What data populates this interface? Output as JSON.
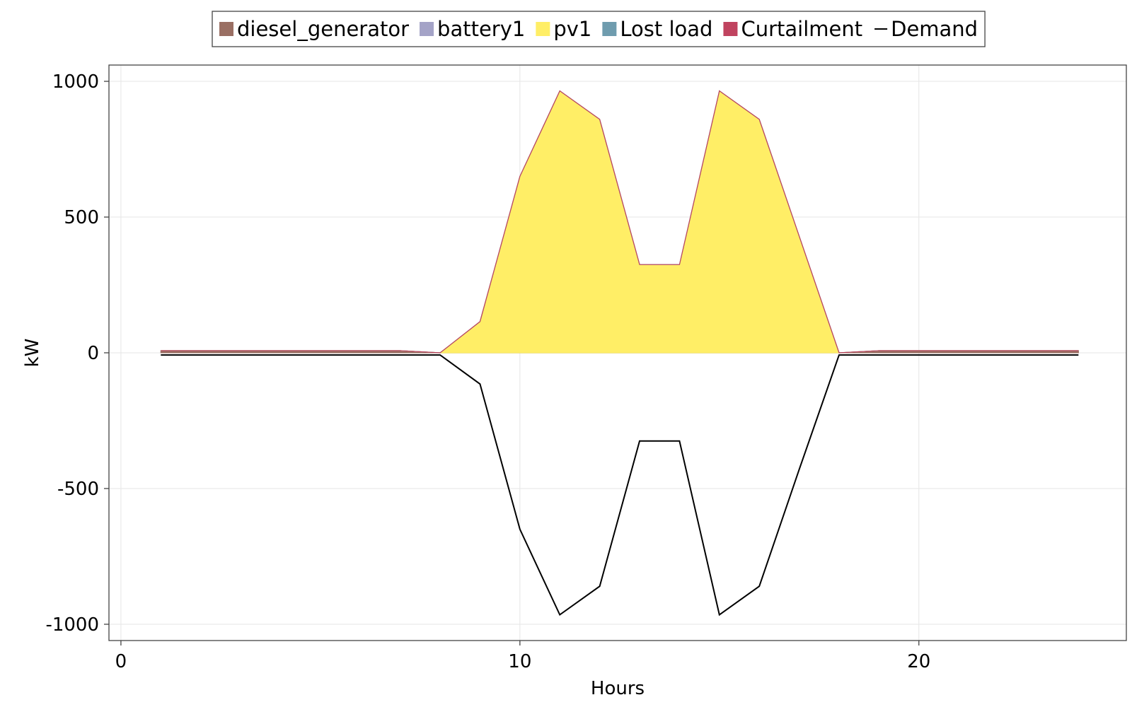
{
  "chart_data": {
    "type": "area",
    "xlabel": "Hours",
    "ylabel": "kW",
    "xlim": [
      -0.3,
      25.2
    ],
    "ylim": [
      -1060,
      1060
    ],
    "xticks": [
      0,
      10,
      20
    ],
    "xtick_labels": [
      "0",
      "10",
      "20"
    ],
    "yticks": [
      1000,
      500,
      0,
      -500,
      -1000
    ],
    "ytick_labels": [
      "1000",
      "500",
      "0",
      "-500",
      "-1000"
    ],
    "grid": true,
    "legend_position": "top-center",
    "x": [
      1,
      2,
      3,
      4,
      5,
      6,
      7,
      8,
      9,
      10,
      11,
      12,
      13,
      14,
      15,
      16,
      17,
      18,
      19,
      20,
      21,
      22,
      23,
      24
    ],
    "series": [
      {
        "name": "diesel_generator",
        "kind": "area",
        "color": "#9a6f63",
        "values": [
          8,
          8,
          8,
          8,
          8,
          8,
          8,
          0,
          0,
          0,
          0,
          0,
          0,
          0,
          0,
          0,
          0,
          0,
          8,
          8,
          8,
          8,
          8,
          8
        ]
      },
      {
        "name": "battery1",
        "kind": "area",
        "color": "#a4a3c7",
        "values": [
          0,
          0,
          0,
          0,
          0,
          0,
          0,
          0,
          0,
          0,
          0,
          0,
          0,
          0,
          0,
          0,
          0,
          0,
          0,
          0,
          0,
          0,
          0,
          0
        ]
      },
      {
        "name": "pv1",
        "kind": "area",
        "color": "#ffee66",
        "values": [
          0,
          0,
          0,
          0,
          0,
          0,
          0,
          0,
          115,
          650,
          965,
          860,
          325,
          325,
          965,
          860,
          430,
          0,
          0,
          0,
          0,
          0,
          0,
          0
        ]
      },
      {
        "name": "Lost load",
        "kind": "area",
        "color": "#6f9cae",
        "values": [
          0,
          0,
          0,
          0,
          0,
          0,
          0,
          0,
          0,
          0,
          0,
          0,
          0,
          0,
          0,
          0,
          0,
          0,
          0,
          0,
          0,
          0,
          0,
          0
        ]
      },
      {
        "name": "Curtailment",
        "kind": "area",
        "color": "#c0435f",
        "values": [
          0,
          0,
          0,
          0,
          0,
          0,
          0,
          0,
          0,
          0,
          0,
          0,
          0,
          0,
          0,
          0,
          0,
          0,
          0,
          0,
          0,
          0,
          0,
          0
        ]
      },
      {
        "name": "Demand",
        "kind": "line",
        "color": "#000000",
        "values": [
          -8,
          -8,
          -8,
          -8,
          -8,
          -8,
          -8,
          -8,
          -115,
          -650,
          -965,
          -860,
          -325,
          -325,
          -965,
          -860,
          -430,
          -8,
          -8,
          -8,
          -8,
          -8,
          -8,
          -8
        ]
      }
    ]
  }
}
